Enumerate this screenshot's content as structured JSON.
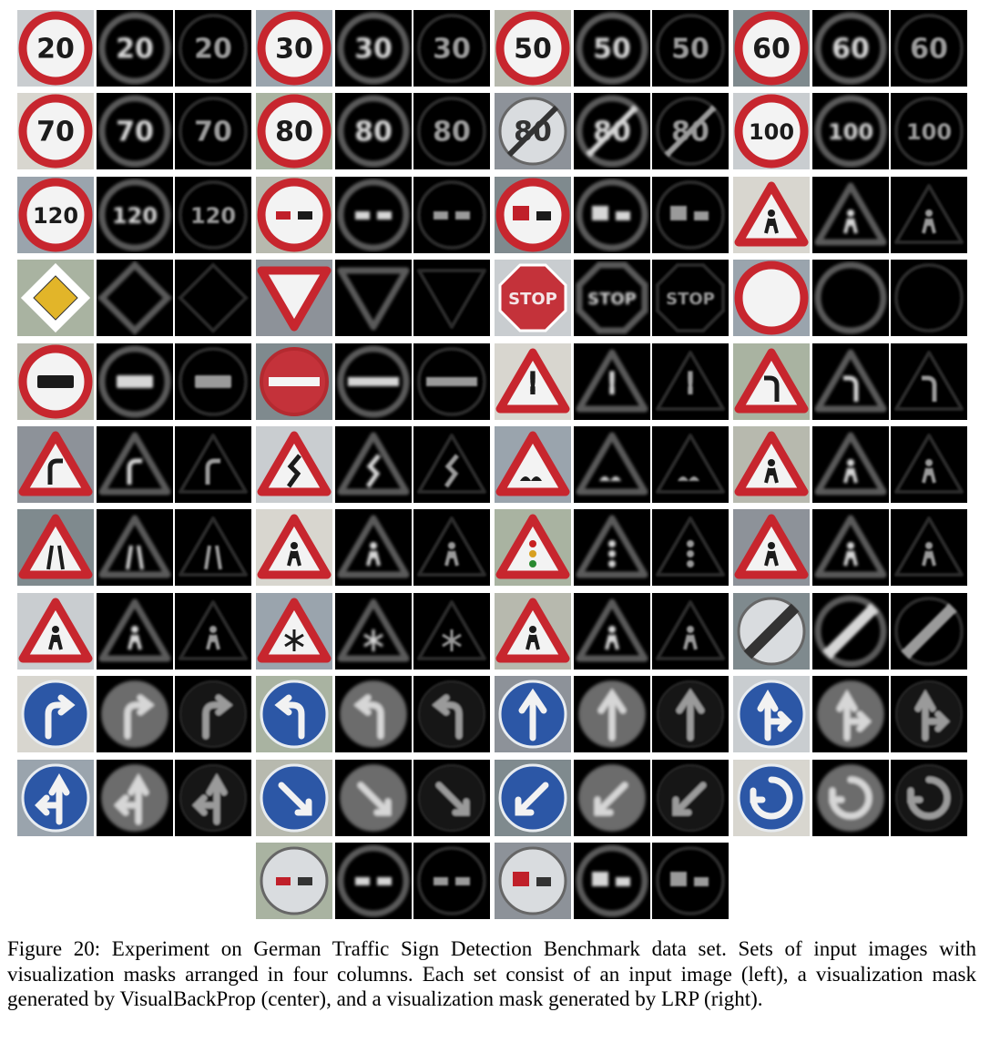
{
  "figure": {
    "panel_columns": [
      "input image",
      "VisualBackProp mask",
      "LRP mask"
    ],
    "signs": [
      {
        "kind": "speed",
        "text": "20"
      },
      {
        "kind": "speed",
        "text": "30"
      },
      {
        "kind": "speed",
        "text": "50"
      },
      {
        "kind": "speed",
        "text": "60"
      },
      {
        "kind": "speed",
        "text": "70"
      },
      {
        "kind": "speed",
        "text": "80"
      },
      {
        "kind": "end80",
        "text": "80"
      },
      {
        "kind": "speed",
        "text": "100"
      },
      {
        "kind": "speed",
        "text": "120"
      },
      {
        "kind": "noovertake",
        "text": ""
      },
      {
        "kind": "noovertaketruck",
        "text": ""
      },
      {
        "kind": "warn_children",
        "text": ""
      },
      {
        "kind": "priority",
        "text": ""
      },
      {
        "kind": "yield",
        "text": ""
      },
      {
        "kind": "stop",
        "text": "STOP"
      },
      {
        "kind": "novehicles",
        "text": ""
      },
      {
        "kind": "notrucks",
        "text": ""
      },
      {
        "kind": "noentry",
        "text": ""
      },
      {
        "kind": "warn_excl",
        "text": "!"
      },
      {
        "kind": "warn_leftcurve",
        "text": ""
      },
      {
        "kind": "warn_rightcurve",
        "text": ""
      },
      {
        "kind": "warn_double",
        "text": ""
      },
      {
        "kind": "warn_bumpy",
        "text": ""
      },
      {
        "kind": "warn_slippery",
        "text": ""
      },
      {
        "kind": "warn_narrow",
        "text": ""
      },
      {
        "kind": "warn_roadwork",
        "text": ""
      },
      {
        "kind": "warn_signals",
        "text": ""
      },
      {
        "kind": "warn_ped",
        "text": ""
      },
      {
        "kind": "warn_kids",
        "text": ""
      },
      {
        "kind": "warn_snow",
        "text": ""
      },
      {
        "kind": "warn_deer",
        "text": ""
      },
      {
        "kind": "endall",
        "text": ""
      },
      {
        "kind": "blue_right",
        "text": ""
      },
      {
        "kind": "blue_left",
        "text": ""
      },
      {
        "kind": "blue_up",
        "text": ""
      },
      {
        "kind": "blue_upright",
        "text": ""
      },
      {
        "kind": "blue_upleft",
        "text": ""
      },
      {
        "kind": "blue_keepright",
        "text": ""
      },
      {
        "kind": "blue_keepleft",
        "text": ""
      },
      {
        "kind": "blue_round",
        "text": ""
      },
      {
        "kind": "end_noovertake",
        "text": ""
      },
      {
        "kind": "end_noovertaketruck",
        "text": ""
      }
    ]
  },
  "caption": "Figure 20: Experiment on German Traffic Sign Detection Benchmark data set. Sets of input images with visualization masks arranged in four columns. Each set consist of an input image (left), a visualization mask generated by VisualBackProp (center), and a visualization mask generated by LRP (right)."
}
